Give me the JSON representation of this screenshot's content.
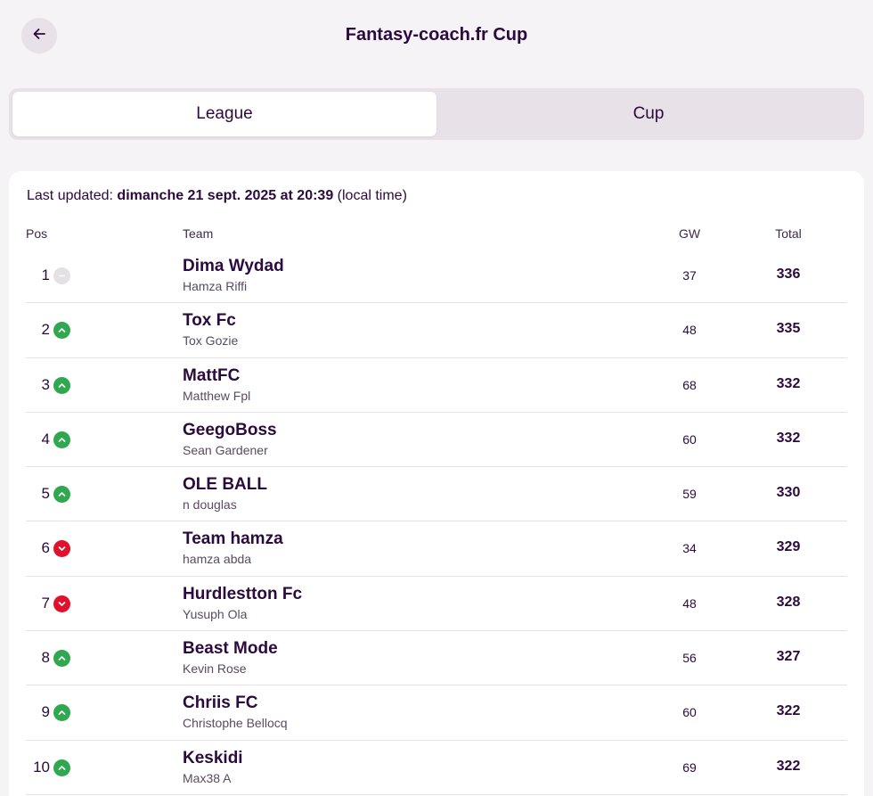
{
  "header": {
    "title": "Fantasy-coach.fr Cup",
    "back_icon": "arrow-left-icon"
  },
  "tabs": [
    {
      "label": "League",
      "active": true
    },
    {
      "label": "Cup",
      "active": false
    }
  ],
  "status": {
    "prefix": "Last updated:",
    "date": "dimanche 21 sept. 2025 at 20:39",
    "suffix": "(local time)"
  },
  "table": {
    "columns": {
      "pos": "Pos",
      "team": "Team",
      "gw": "GW",
      "total": "Total"
    },
    "rows": [
      {
        "pos": "1",
        "movement": "same",
        "team": "Dima Wydad",
        "manager": "Hamza Riffi",
        "gw": "37",
        "total": "336"
      },
      {
        "pos": "2",
        "movement": "up",
        "team": "Tox Fc",
        "manager": "Tox Gozie",
        "gw": "48",
        "total": "335"
      },
      {
        "pos": "3",
        "movement": "up",
        "team": "MattFC",
        "manager": "Matthew Fpl",
        "gw": "68",
        "total": "332"
      },
      {
        "pos": "4",
        "movement": "up",
        "team": "GeegoBoss",
        "manager": "Sean Gardener",
        "gw": "60",
        "total": "332"
      },
      {
        "pos": "5",
        "movement": "up",
        "team": "OLE BALL",
        "manager": "n douglas",
        "gw": "59",
        "total": "330"
      },
      {
        "pos": "6",
        "movement": "down",
        "team": "Team hamza",
        "manager": "hamza abda",
        "gw": "34",
        "total": "329"
      },
      {
        "pos": "7",
        "movement": "down",
        "team": "Hurdlestton Fc",
        "manager": "Yusuph Ola",
        "gw": "48",
        "total": "328"
      },
      {
        "pos": "8",
        "movement": "up",
        "team": "Beast Mode",
        "manager": "Kevin Rose",
        "gw": "56",
        "total": "327"
      },
      {
        "pos": "9",
        "movement": "up",
        "team": "Chriis FC",
        "manager": "Christophe Bellocq",
        "gw": "60",
        "total": "322"
      },
      {
        "pos": "10",
        "movement": "up",
        "team": "Keskidi",
        "manager": "Max38 A",
        "gw": "69",
        "total": "322"
      }
    ]
  },
  "colors": {
    "up": "#2fa84f",
    "down": "#e0112b",
    "same": "#e4e0e5",
    "text": "#2b0a3d"
  }
}
